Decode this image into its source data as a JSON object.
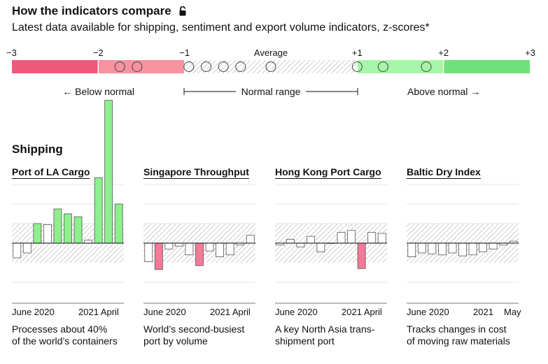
{
  "header": {
    "title": "How the indicators compare",
    "subtitle": "Latest data available for shipping, sentiment and export volume indicators, z-scores*"
  },
  "scale": {
    "tick_labels": [
      "−3",
      "−2",
      "−1",
      "Average",
      "+1",
      "+2",
      "+3"
    ],
    "below_label": "← Below normal",
    "normal_label": "Normal range",
    "above_label": "Above normal →",
    "markers": [
      -1.75,
      -1.55,
      -0.95,
      -0.75,
      -0.55,
      -0.35,
      0.0,
      1.0,
      1.3,
      1.8
    ],
    "colors": {
      "strong_negative": "#f0587a",
      "negative": "#f7929f",
      "positive": "#a6f5a8",
      "strong_positive": "#6fe07a"
    }
  },
  "section": {
    "title": "Shipping"
  },
  "chart_data": [
    {
      "type": "bar",
      "title": "Port of LA Cargo",
      "x_start": "June 2020",
      "x_end": "2021 April",
      "description_lines": [
        "Processes about 40%",
        "of the world’s containers"
      ],
      "ylim": [
        -2,
        7.3
      ],
      "values": [
        -0.75,
        -0.5,
        1.0,
        0.95,
        1.75,
        1.5,
        1.35,
        0.15,
        3.35,
        7.3,
        2.0
      ]
    },
    {
      "type": "bar",
      "title": "Singapore Throughput",
      "x_start": "June 2020",
      "x_end": "2021 April",
      "description_lines": [
        "World’s second-busiest",
        "port by volume"
      ],
      "ylim": [
        -2,
        7.3
      ],
      "values": [
        -0.95,
        -1.35,
        -0.3,
        -0.15,
        -0.6,
        -1.15,
        -0.4,
        -0.7,
        -0.6,
        -0.1,
        0.4
      ]
    },
    {
      "type": "bar",
      "title": "Hong Kong Port Cargo",
      "x_start": "June 2020",
      "x_end": "2021 April",
      "description_lines": [
        "A key North Asia trans-",
        "shipment port"
      ],
      "ylim": [
        -2,
        7.3
      ],
      "values": [
        -0.1,
        0.2,
        -0.2,
        0.35,
        -0.45,
        0.0,
        0.55,
        0.65,
        -1.3,
        0.55,
        0.5
      ]
    },
    {
      "type": "bar",
      "title": "Baltic Dry Index",
      "x_start": "June 2020",
      "x_mid": "2021",
      "x_end": "May",
      "description_lines": [
        "Tracks changes in cost",
        "of moving raw materials"
      ],
      "ylim": [
        -2,
        7.3
      ],
      "values": [
        -0.7,
        -0.5,
        -0.55,
        -0.6,
        -0.5,
        -0.65,
        -0.6,
        -0.45,
        -0.3,
        -0.1,
        0.1
      ]
    }
  ]
}
